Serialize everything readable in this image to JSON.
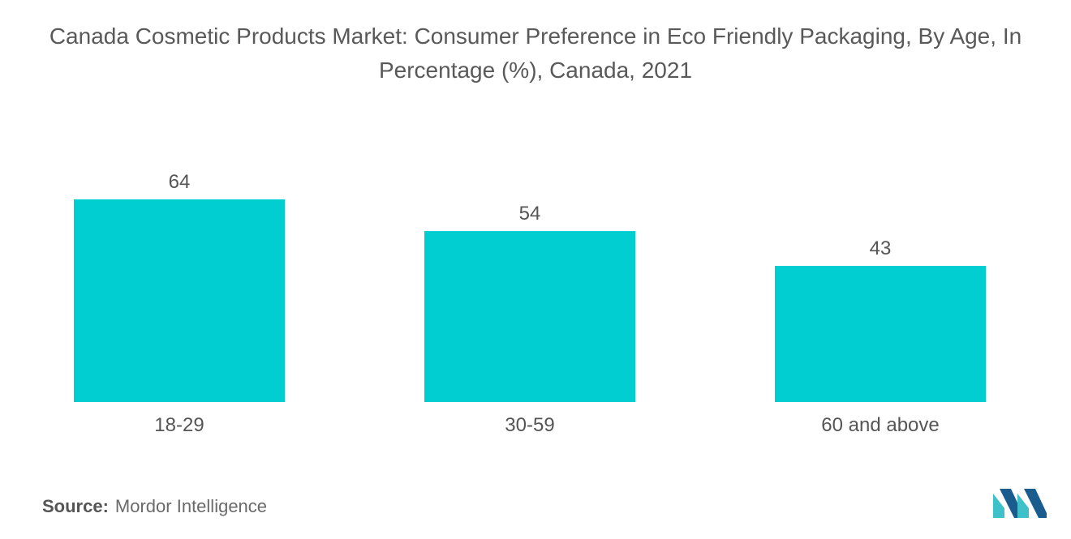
{
  "chart_data": {
    "type": "bar",
    "title": "Canada Cosmetic Products Market: Consumer Preference in Eco Friendly Packaging, By Age, In Percentage (%), Canada, 2021",
    "categories": [
      "18-29",
      "30-59",
      "60 and above"
    ],
    "values": [
      64,
      54,
      43
    ],
    "data_labels": [
      "64",
      "54",
      "43"
    ],
    "xlabel": "",
    "ylabel": "",
    "ylim": [
      0,
      64
    ],
    "grid": false,
    "legend": "none",
    "bar_color": "#00CED1"
  },
  "footer": {
    "source_label": "Source:",
    "source_value": "Mordor Intelligence"
  },
  "colors": {
    "bar": "#00CED1",
    "logo_dark": "#1B5C8F",
    "logo_light": "#3FC1C9"
  },
  "logo": {
    "icon": "mordor-intelligence-logo-icon"
  }
}
